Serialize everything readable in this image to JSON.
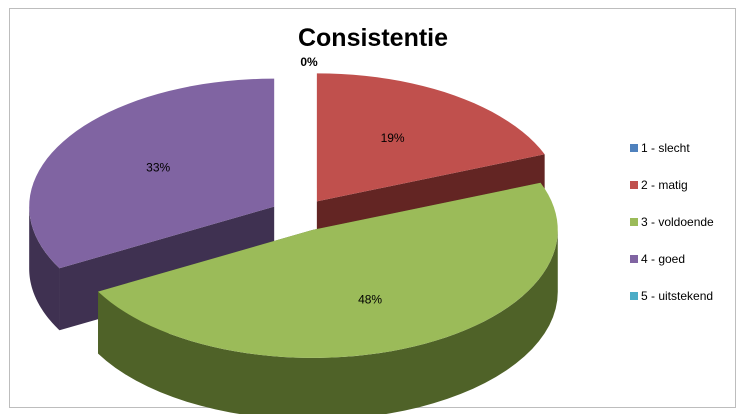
{
  "chart_data": {
    "type": "pie",
    "title": "Consistentie",
    "categories": [
      "1 - slecht",
      "2 - matig",
      "3 - voldoende",
      "4 - goed",
      "5 - uitstekend"
    ],
    "values": [
      0,
      19,
      48,
      33,
      0
    ],
    "labels": [
      "0%",
      "19%",
      "48%",
      "33%",
      ""
    ],
    "colors": [
      "#4f81bd",
      "#c0504d",
      "#9bbb59",
      "#8064a2",
      "#4bacc6"
    ],
    "side_colors": [
      "#2c4d75",
      "#632523",
      "#4f6228",
      "#3f3151",
      "#205867"
    ],
    "legend_position": "right",
    "style": "3d-exploded"
  }
}
